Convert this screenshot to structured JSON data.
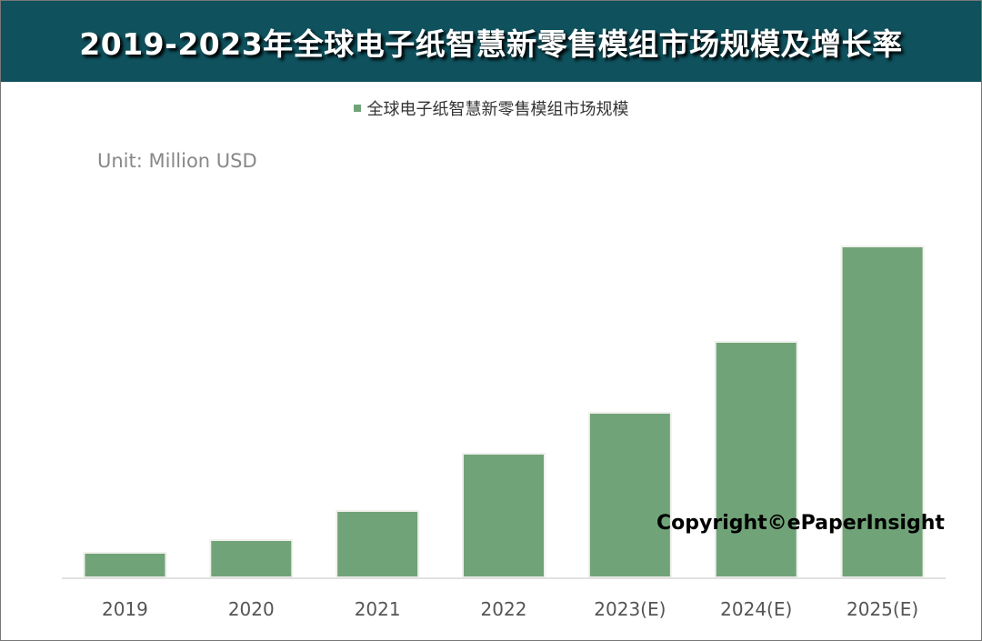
{
  "header": {
    "title": "2019-2023年全球电子纸智慧新零售模组市场规模及增长率"
  },
  "unit_label": "Unit: Million USD",
  "copyright": "Copyright©ePaperInsight",
  "colors": {
    "header_bg": "#0f515d",
    "bar": "#71a378"
  },
  "chart_data": {
    "type": "bar",
    "title": "2019-2023年全球电子纸智慧新零售模组市场规模及增长率",
    "categories": [
      "2019",
      "2020",
      "2021",
      "2022",
      "2023(E)",
      "2024(E)",
      "2025(E)"
    ],
    "series": [
      {
        "name": "全球电子纸智慧新零售模组市场规模",
        "values": [
          27,
          41,
          73,
          136,
          181,
          259,
          364
        ]
      }
    ],
    "ylabel": "Unit: Million USD",
    "y_axis_ticks_shown": false,
    "grid": false,
    "legend_position": "top"
  }
}
